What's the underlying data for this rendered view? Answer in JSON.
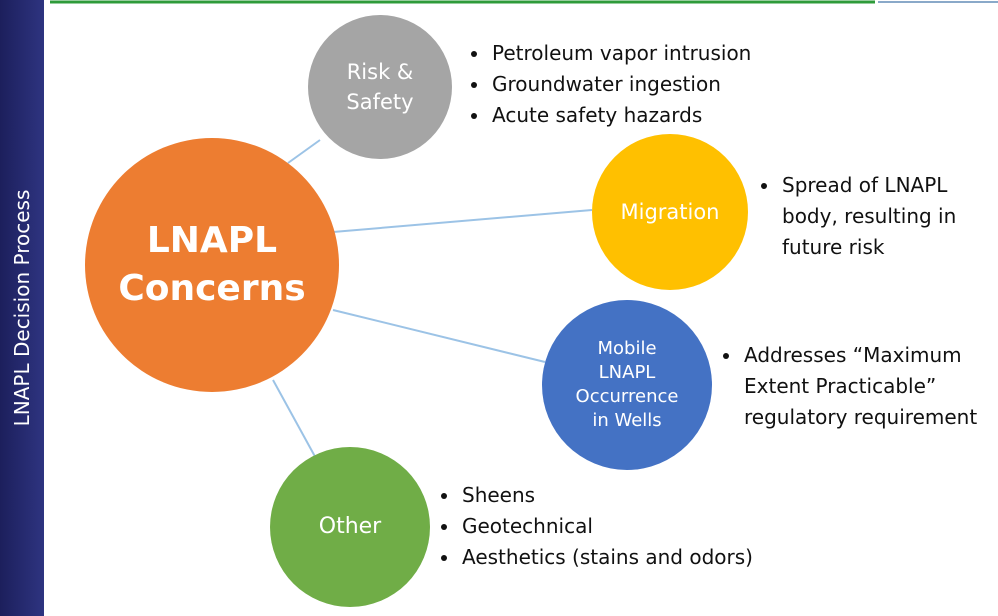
{
  "sidebar": {
    "label": "LNAPL Decision Process"
  },
  "center": {
    "label": "LNAPL Concerns"
  },
  "nodes": [
    {
      "label": "Risk & Safety",
      "bullets": [
        "Petroleum vapor intrusion",
        "Groundwater ingestion",
        "Acute safety hazards"
      ]
    },
    {
      "label": "Migration",
      "bullets": [
        "Spread of LNAPL body, resulting in future risk"
      ]
    },
    {
      "label": "Mobile LNAPL Occurrence in Wells",
      "bullets": [
        "Addresses “Maximum Extent Practicable” regulatory requirement"
      ]
    },
    {
      "label": "Other",
      "bullets": [
        "Sheens",
        "Geotechnical",
        "Aesthetics (stains and odors)"
      ]
    }
  ]
}
